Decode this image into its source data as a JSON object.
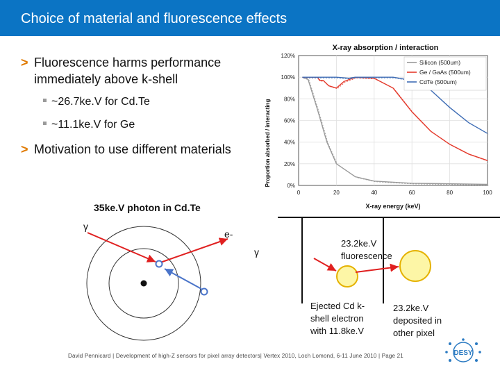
{
  "slide": {
    "title": "Choice of material and fluorescence effects",
    "bullets": [
      {
        "text": "Fluorescence harms performance immediately above k-shell"
      },
      {
        "text": "Motivation to use different materials"
      }
    ],
    "sub_bullets": [
      "~26.7ke.V for Cd.Te",
      "~11.1ke.V for Ge"
    ]
  },
  "chart_data": {
    "type": "line",
    "title": "X-ray absorption / interaction",
    "xlabel": "X-ray energy (keV)",
    "ylabel": "Proportion absorbed / interacting",
    "xlim": [
      0,
      100
    ],
    "ylim": [
      0,
      120
    ],
    "xticks": [
      "0",
      "20",
      "40",
      "60",
      "80",
      "100"
    ],
    "yticks": [
      "0%",
      "20%",
      "40%",
      "60%",
      "80%",
      "100%",
      "120%"
    ],
    "legend_position": "top-right",
    "series": [
      {
        "name": "Silicon (500um)",
        "color": "#9a9a9a",
        "x": [
          2,
          5,
          10,
          15,
          20,
          30,
          40,
          60,
          100
        ],
        "y": [
          100,
          98,
          70,
          40,
          20,
          8,
          4,
          2,
          1
        ]
      },
      {
        "name": "Ge / GaAs (500um)",
        "color": "#e43a2c",
        "x": [
          2,
          5,
          10,
          11.1,
          13,
          16,
          20,
          24,
          30,
          40,
          50,
          60,
          70,
          80,
          90,
          100
        ],
        "y": [
          100,
          100,
          100,
          97,
          97,
          92,
          90,
          96,
          100,
          99,
          90,
          68,
          50,
          38,
          29,
          23
        ]
      },
      {
        "name": "CdTe (500um)",
        "color": "#3f6db5",
        "x": [
          2,
          10,
          20,
          26.7,
          30,
          40,
          50,
          60,
          70,
          80,
          90,
          100
        ],
        "y": [
          100,
          100,
          100,
          99,
          100,
          100,
          100,
          97,
          88,
          72,
          58,
          48
        ]
      }
    ]
  },
  "diagram": {
    "title": "35ke.V photon in Cd.Te",
    "gamma_left": "γ",
    "electron_label": "e-",
    "gamma_right": "γ",
    "fluorescence_label_line1": "23.2ke.V",
    "fluorescence_label_line2": "fluorescence",
    "ejected_label": [
      "Ejected Cd k-",
      "shell electron",
      "with 11.8ke.V"
    ],
    "deposited_label": [
      "23.2ke.V",
      "deposited in",
      "other pixel"
    ],
    "electron_glyph": "e"
  },
  "footer": {
    "text": "David Pennicard | Development of high-Z sensors for pixel array detectors| Vertex 2010, Loch Lomond, 6-11 June 2010 | Page 21",
    "logo_text": "DESY"
  },
  "colors": {
    "title_bar": "#0b74c4",
    "bullet_marker": "#e07a00",
    "arrow_red": "#e02020",
    "arrow_blue": "#4a74c9",
    "pixel_fill": "#fdf6a6",
    "pixel_stroke": "#e5b200"
  }
}
